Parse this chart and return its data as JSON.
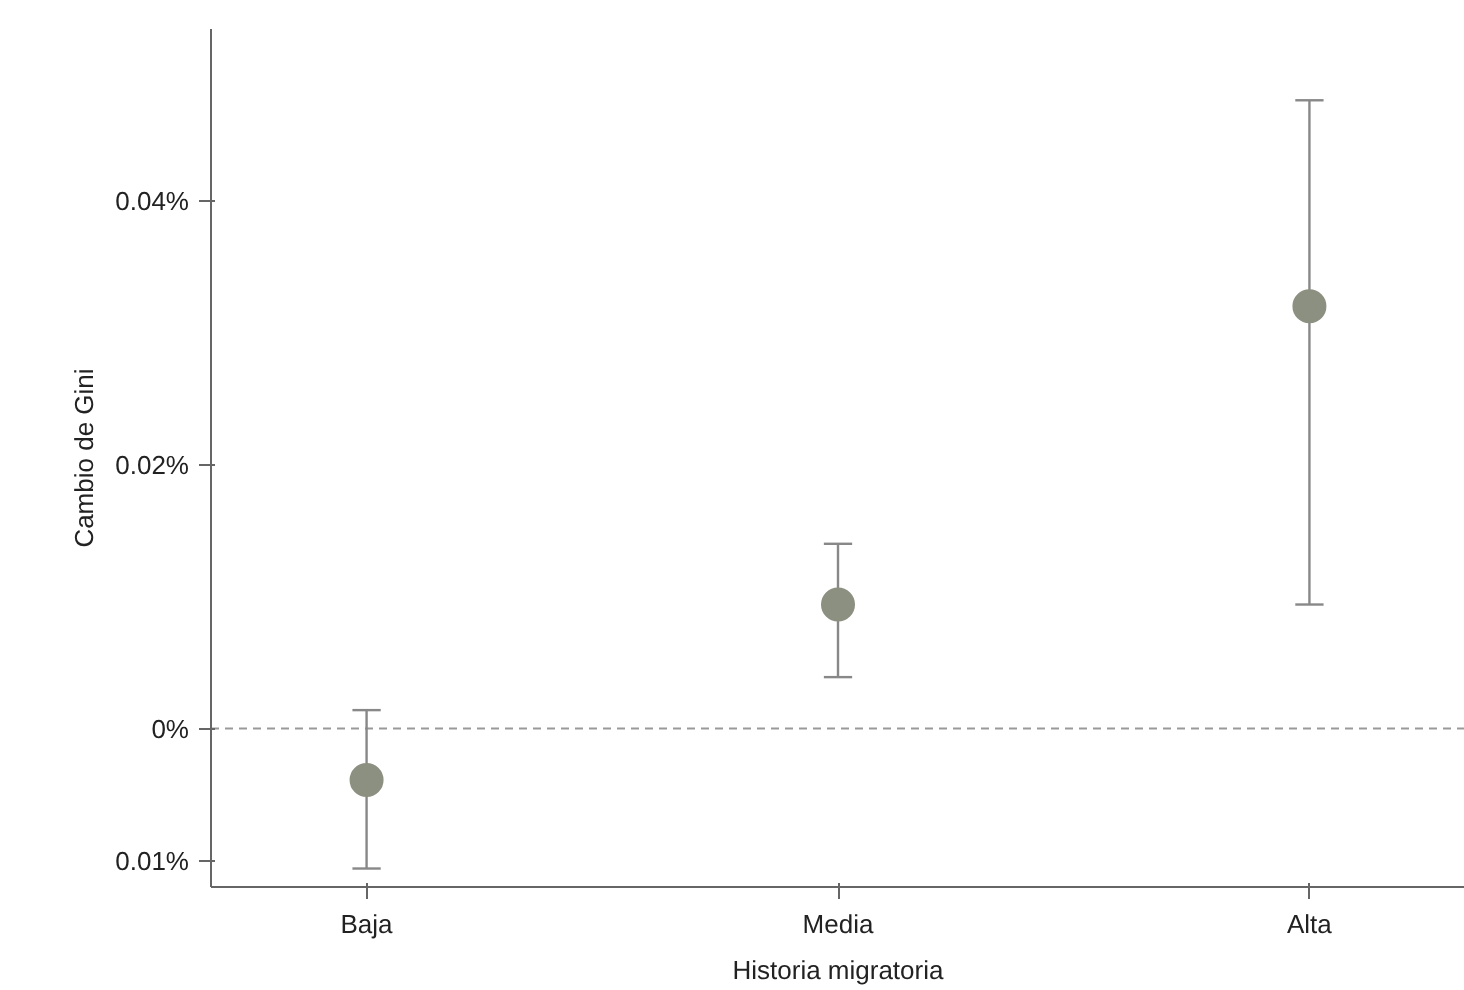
{
  "chart_data": {
    "type": "scatter",
    "xlabel": "Historia migratoria",
    "ylabel": "Cambio de Gini",
    "categories": [
      "Baja",
      "Media",
      "Alta"
    ],
    "values": [
      -0.0039,
      0.0094,
      0.032
    ],
    "errors": [
      [
        -0.0106,
        0.0014
      ],
      [
        0.0039,
        0.014
      ],
      [
        0.0094,
        0.0476
      ]
    ],
    "color": "#8c9080",
    "marker": "circle",
    "grid": false,
    "ylim": [
      -0.012,
      0.053
    ],
    "yticks": [
      {
        "value": 0.04,
        "label": "0.04%"
      },
      {
        "value": 0.02,
        "label": "0.02%"
      },
      {
        "value": 0,
        "label": "0%"
      },
      {
        "value": -0.01,
        "label": "0.01%"
      }
    ],
    "ref_lines": [
      {
        "axis": "y",
        "value": 0,
        "color": "#999999",
        "line_style": "dashed"
      }
    ]
  }
}
